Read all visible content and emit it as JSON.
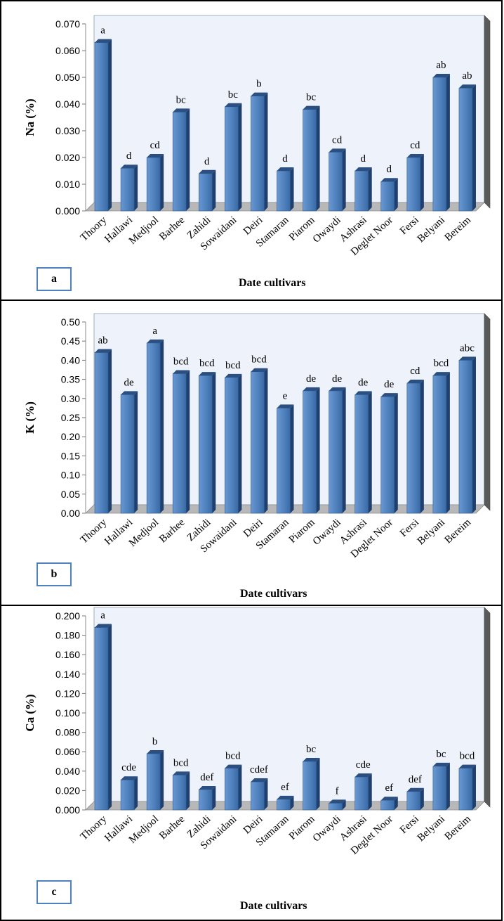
{
  "xaxis_title": "Date cultivars",
  "chart_data": [
    {
      "type": "bar",
      "panel_label": "a",
      "ylabel": "Na (%)",
      "xlabel": "Date cultivars",
      "ylim": [
        0,
        0.07
      ],
      "ytick_step": 0.01,
      "ytick_decimals": 3,
      "categories": [
        "Thoory",
        "Hallawi",
        "Medjool",
        "Barhee",
        "Zahidi",
        "Sowaidani",
        "Deiri",
        "Stamaran",
        "Piarom",
        "Owaydi",
        "Ashrasi",
        "Deglet Noor",
        "Fersi",
        "Belyani",
        "Bereim"
      ],
      "values": [
        0.063,
        0.016,
        0.02,
        0.037,
        0.014,
        0.039,
        0.043,
        0.015,
        0.038,
        0.022,
        0.015,
        0.011,
        0.02,
        0.05,
        0.046
      ],
      "letters": [
        "a",
        "d",
        "cd",
        "bc",
        "d",
        "bc",
        "b",
        "d",
        "bc",
        "cd",
        "d",
        "d",
        "cd",
        "ab",
        "ab"
      ],
      "bar_color": "#4F81BD",
      "grid": false
    },
    {
      "type": "bar",
      "panel_label": "b",
      "ylabel": "K (%)",
      "xlabel": "Date cultivars",
      "ylim": [
        0,
        0.5
      ],
      "ytick_step": 0.05,
      "ytick_decimals": 2,
      "categories": [
        "Thoory",
        "Hallawi",
        "Medjool",
        "Barhee",
        "Zahidi",
        "Sowaidani",
        "Deiri",
        "Stamaran",
        "Piarom",
        "Owaydi",
        "Ashrasi",
        "Deglet Noor",
        "Fersi",
        "Belyani",
        "Bereim"
      ],
      "values": [
        0.42,
        0.31,
        0.445,
        0.365,
        0.36,
        0.355,
        0.37,
        0.275,
        0.32,
        0.32,
        0.31,
        0.305,
        0.34,
        0.36,
        0.4
      ],
      "letters": [
        "ab",
        "de",
        "a",
        "bcd",
        "bcd",
        "bcd",
        "bcd",
        "e",
        "de",
        "de",
        "de",
        "de",
        "cd",
        "bcd",
        "abc"
      ],
      "bar_color": "#4F81BD",
      "grid": false
    },
    {
      "type": "bar",
      "panel_label": "c",
      "ylabel": "Ca (%)",
      "xlabel": "Date cultivars",
      "ylim": [
        0,
        0.2
      ],
      "ytick_step": 0.02,
      "ytick_decimals": 3,
      "categories": [
        "Thoory",
        "Hallawi",
        "Medjool",
        "Barhee",
        "Zahidi",
        "Sowaidani",
        "Deiri",
        "Stamaran",
        "Piarom",
        "Owaydi",
        "Ashrasi",
        "Deglet Noor",
        "Fersi",
        "Belyani",
        "Bereim"
      ],
      "values": [
        0.188,
        0.031,
        0.058,
        0.036,
        0.021,
        0.043,
        0.029,
        0.011,
        0.05,
        0.007,
        0.034,
        0.01,
        0.019,
        0.045,
        0.043
      ],
      "letters": [
        "a",
        "cde",
        "b",
        "bcd",
        "def",
        "bcd",
        "cdef",
        "ef",
        "bc",
        "f",
        "cde",
        "ef",
        "def",
        "bc",
        "bcd"
      ],
      "bar_color": "#4F81BD",
      "grid": false
    }
  ]
}
